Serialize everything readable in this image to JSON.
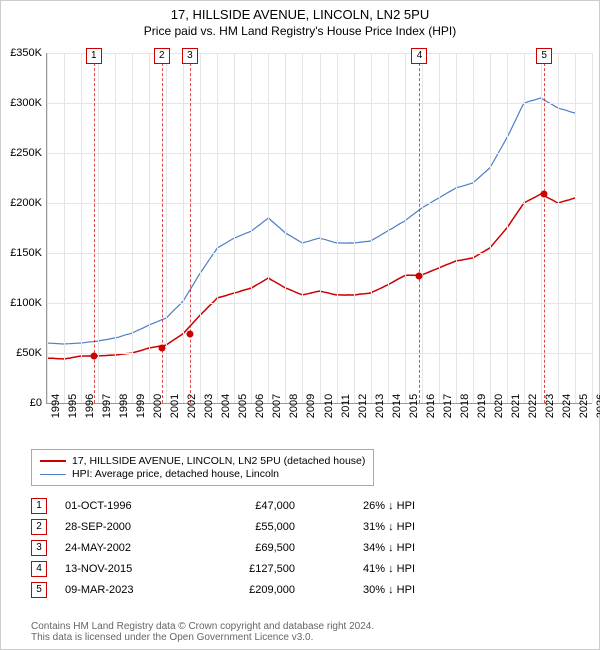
{
  "title": "17, HILLSIDE AVENUE, LINCOLN, LN2 5PU",
  "subtitle": "Price paid vs. HM Land Registry's House Price Index (HPI)",
  "chart": {
    "type": "line",
    "background_color": "#ffffff",
    "grid_color": "#e5e5e5",
    "axis_color": "#999999",
    "ylim": [
      0,
      350000
    ],
    "ytick_step": 50000,
    "yticks": [
      "£0",
      "£50K",
      "£100K",
      "£150K",
      "£200K",
      "£250K",
      "£300K",
      "£350K"
    ],
    "xlim": [
      1994,
      2026
    ],
    "xticks": [
      1994,
      1995,
      1996,
      1997,
      1998,
      1999,
      2000,
      2001,
      2002,
      2003,
      2004,
      2005,
      2006,
      2007,
      2008,
      2009,
      2010,
      2011,
      2012,
      2013,
      2014,
      2015,
      2016,
      2017,
      2018,
      2019,
      2020,
      2021,
      2022,
      2023,
      2024,
      2025,
      2026
    ],
    "label_fontsize": 11,
    "series": [
      {
        "name": "hpi",
        "label": "HPI: Average price, detached house, Lincoln",
        "color": "#4d7ec8",
        "line_width": 1.2,
        "points": [
          [
            1994,
            60000
          ],
          [
            1995,
            59000
          ],
          [
            1996,
            60000
          ],
          [
            1997,
            62000
          ],
          [
            1998,
            65000
          ],
          [
            1999,
            70000
          ],
          [
            2000,
            78000
          ],
          [
            2001,
            85000
          ],
          [
            2002,
            102000
          ],
          [
            2003,
            130000
          ],
          [
            2004,
            155000
          ],
          [
            2005,
            165000
          ],
          [
            2006,
            172000
          ],
          [
            2007,
            185000
          ],
          [
            2008,
            170000
          ],
          [
            2009,
            160000
          ],
          [
            2010,
            165000
          ],
          [
            2011,
            160000
          ],
          [
            2012,
            160000
          ],
          [
            2013,
            162000
          ],
          [
            2014,
            172000
          ],
          [
            2015,
            182000
          ],
          [
            2016,
            195000
          ],
          [
            2017,
            205000
          ],
          [
            2018,
            215000
          ],
          [
            2019,
            220000
          ],
          [
            2020,
            235000
          ],
          [
            2021,
            265000
          ],
          [
            2022,
            300000
          ],
          [
            2023,
            305000
          ],
          [
            2024,
            295000
          ],
          [
            2025,
            290000
          ]
        ]
      },
      {
        "name": "price_paid",
        "label": "17, HILLSIDE AVENUE, LINCOLN, LN2 5PU (detached house)",
        "color": "#cc0000",
        "line_width": 1.5,
        "points": [
          [
            1994,
            45000
          ],
          [
            1995,
            44000
          ],
          [
            1996,
            47000
          ],
          [
            1997,
            47000
          ],
          [
            1998,
            48000
          ],
          [
            1999,
            50000
          ],
          [
            2000,
            55000
          ],
          [
            2001,
            58000
          ],
          [
            2002,
            69500
          ],
          [
            2003,
            88000
          ],
          [
            2004,
            105000
          ],
          [
            2005,
            110000
          ],
          [
            2006,
            115000
          ],
          [
            2007,
            125000
          ],
          [
            2008,
            115000
          ],
          [
            2009,
            108000
          ],
          [
            2010,
            112000
          ],
          [
            2011,
            108000
          ],
          [
            2012,
            108000
          ],
          [
            2013,
            110000
          ],
          [
            2014,
            118000
          ],
          [
            2015,
            127500
          ],
          [
            2016,
            128000
          ],
          [
            2017,
            135000
          ],
          [
            2018,
            142000
          ],
          [
            2019,
            145000
          ],
          [
            2020,
            155000
          ],
          [
            2021,
            175000
          ],
          [
            2022,
            200000
          ],
          [
            2023,
            209000
          ],
          [
            2024,
            200000
          ],
          [
            2025,
            205000
          ]
        ]
      }
    ],
    "markers": [
      {
        "n": "1",
        "year": 1996.75,
        "value": 47000
      },
      {
        "n": "2",
        "year": 2000.74,
        "value": 55000
      },
      {
        "n": "3",
        "year": 2002.39,
        "value": 69500
      },
      {
        "n": "4",
        "year": 2015.87,
        "value": 127500
      },
      {
        "n": "5",
        "year": 2023.19,
        "value": 209000
      }
    ],
    "marker_color": "#cc0000"
  },
  "legend_items": [
    {
      "color": "#cc0000",
      "width": 2,
      "label": "17, HILLSIDE AVENUE, LINCOLN, LN2 5PU (detached house)"
    },
    {
      "color": "#4d7ec8",
      "width": 1.2,
      "label": "HPI: Average price, detached house, Lincoln"
    }
  ],
  "transactions": [
    {
      "n": "1",
      "date": "01-OCT-1996",
      "price": "£47,000",
      "pct": "26% ↓ HPI"
    },
    {
      "n": "2",
      "date": "28-SEP-2000",
      "price": "£55,000",
      "pct": "31% ↓ HPI"
    },
    {
      "n": "3",
      "date": "24-MAY-2002",
      "price": "£69,500",
      "pct": "34% ↓ HPI"
    },
    {
      "n": "4",
      "date": "13-NOV-2015",
      "price": "£127,500",
      "pct": "41% ↓ HPI"
    },
    {
      "n": "5",
      "date": "09-MAR-2023",
      "price": "£209,000",
      "pct": "30% ↓ HPI"
    }
  ],
  "footer_line1": "Contains HM Land Registry data © Crown copyright and database right 2024.",
  "footer_line2": "This data is licensed under the Open Government Licence v3.0."
}
